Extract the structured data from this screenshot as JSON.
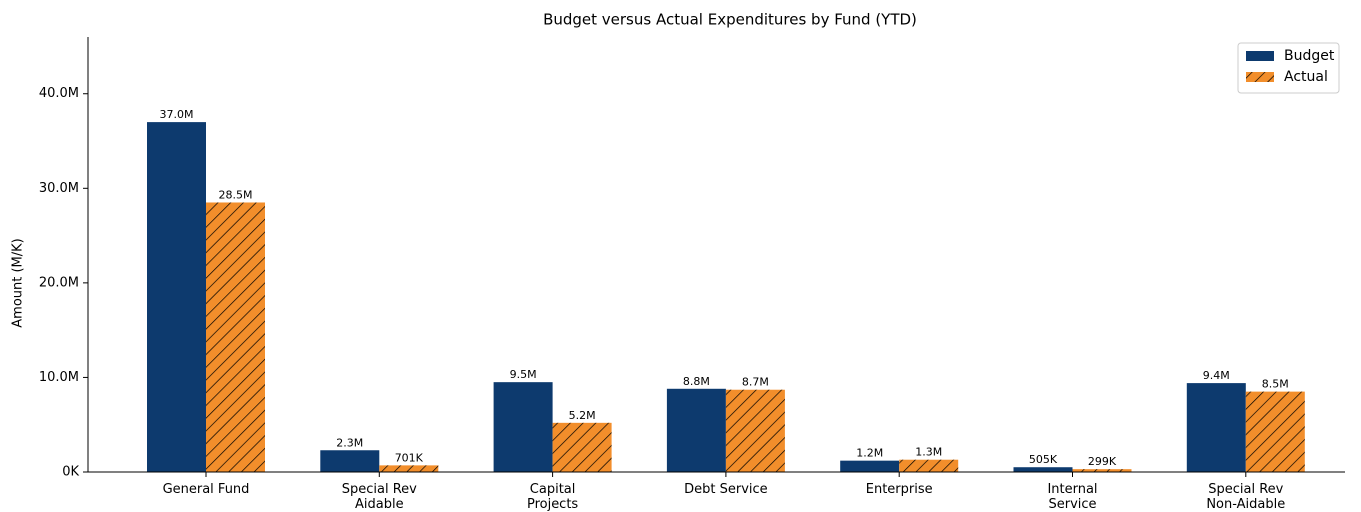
{
  "chart_data": {
    "type": "bar",
    "title": "Budget versus Actual Expenditures by Fund (YTD)",
    "y_label": "Amount (M/K)",
    "categories": [
      "General Fund",
      "Special Rev\nAidable",
      "Capital\nProjects",
      "Debt Service",
      "Enterprise",
      "Internal\nService",
      "Special Rev\nNon-Aidable"
    ],
    "series": [
      {
        "name": "Budget",
        "color": "#0d3a6e",
        "values": [
          37000000,
          2300000,
          9500000,
          8800000,
          1200000,
          505000,
          9400000
        ],
        "value_labels": [
          "37.0M",
          "2.3M",
          "9.5M",
          "8.8M",
          "1.2M",
          "505K",
          "9.4M"
        ]
      },
      {
        "name": "Actual",
        "color": "#f28e2b",
        "hatch": true,
        "values": [
          28500000,
          701000,
          5200000,
          8700000,
          1300000,
          299000,
          8500000
        ],
        "value_labels": [
          "28.5M",
          "701K",
          "5.2M",
          "8.7M",
          "1.3M",
          "299K",
          "8.5M"
        ]
      }
    ],
    "ylim": [
      0,
      46000000
    ],
    "yticks": [
      {
        "value": 0,
        "label": "0K"
      },
      {
        "value": 10000000,
        "label": "10.0M"
      },
      {
        "value": 20000000,
        "label": "20.0M"
      },
      {
        "value": 30000000,
        "label": "30.0M"
      },
      {
        "value": 40000000,
        "label": "40.0M"
      }
    ],
    "legend": "upper right",
    "grid": false
  }
}
